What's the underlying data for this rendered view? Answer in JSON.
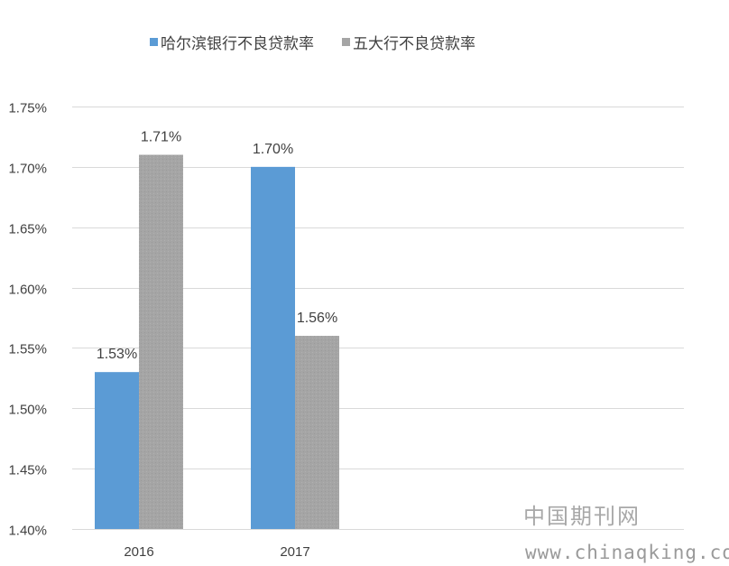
{
  "chart_data": {
    "type": "bar",
    "title": "",
    "xlabel": "",
    "ylabel": "",
    "categories": [
      "2016",
      "2017"
    ],
    "series": [
      {
        "name": "哈尔滨银行不良贷款率",
        "values": [
          1.53,
          1.7
        ],
        "labels": [
          "1.53%",
          "1.70%"
        ],
        "color": "#5b9bd5"
      },
      {
        "name": "五大行不良贷款率",
        "values": [
          1.71,
          1.56
        ],
        "labels": [
          "1.71%",
          "1.56%"
        ],
        "color": "#a5a5a5"
      }
    ],
    "ylim": [
      1.4,
      1.75
    ],
    "yticks": [
      "1.40%",
      "1.45%",
      "1.50%",
      "1.55%",
      "1.60%",
      "1.65%",
      "1.70%",
      "1.75%"
    ],
    "ytick_values": [
      1.4,
      1.45,
      1.5,
      1.55,
      1.6,
      1.65,
      1.7,
      1.75
    ],
    "grid": true,
    "legend_position": "top"
  },
  "watermark": {
    "cn": "中国期刊网",
    "url": "www.chinaqking.com"
  }
}
